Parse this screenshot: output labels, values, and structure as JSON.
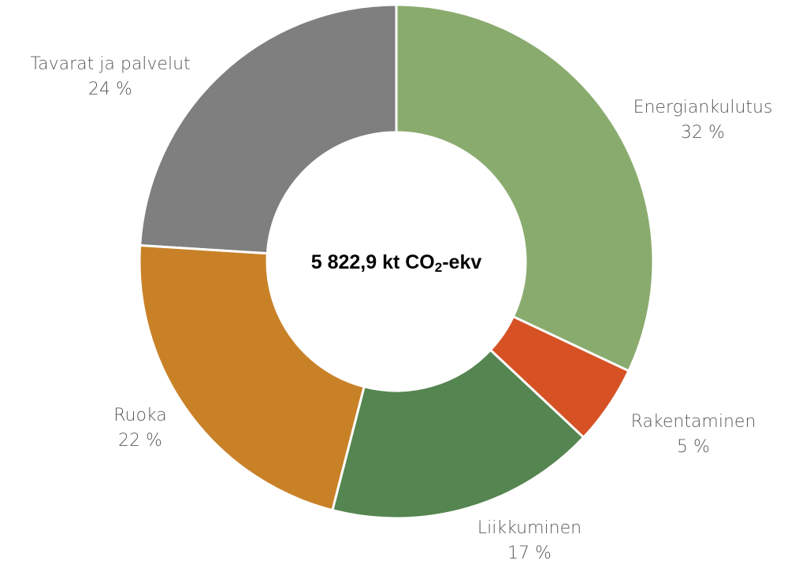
{
  "chart_data": {
    "type": "donut",
    "categories": [
      "Energiankulutus",
      "Rakentaminen",
      "Liikkuminen",
      "Ruoka",
      "Tavarat ja palvelut"
    ],
    "values": [
      32,
      5,
      17,
      22,
      24
    ],
    "value_labels": [
      "32 %",
      "5 %",
      "17 %",
      "22 %",
      "24 %"
    ],
    "colors": [
      "#8aab6e",
      "#d65225",
      "#558550",
      "#c98128",
      "#7f7f7f"
    ],
    "center_label": [
      "5 822,9 kt CO",
      "2",
      "-ekv"
    ]
  }
}
